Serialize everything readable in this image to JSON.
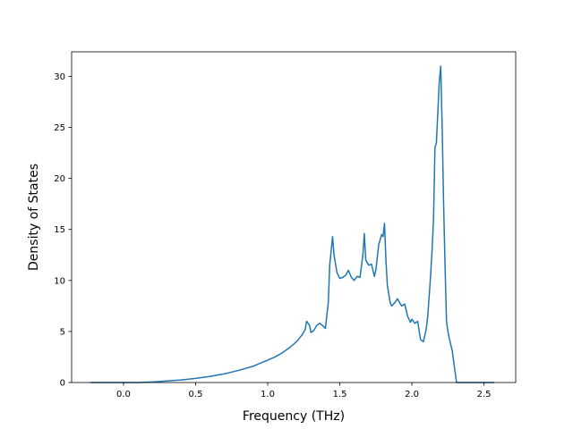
{
  "chart_data": {
    "type": "line",
    "title": "",
    "xlabel": "Frequency (THz)",
    "ylabel": "Density of States",
    "xlim": [
      -0.36,
      2.72
    ],
    "ylim": [
      0,
      32.4
    ],
    "grid": false,
    "legend": "none",
    "xticks": [
      0.0,
      0.5,
      1.0,
      1.5,
      2.0,
      2.5
    ],
    "xtick_labels": [
      "0.0",
      "0.5",
      "1.0",
      "1.5",
      "2.0",
      "2.5"
    ],
    "yticks": [
      0,
      5,
      10,
      15,
      20,
      25,
      30
    ],
    "ytick_labels": [
      "0",
      "5",
      "10",
      "15",
      "20",
      "25",
      "30"
    ],
    "series": [
      {
        "color": "#1f77b4",
        "x": [
          -0.23,
          -0.1,
          0.0,
          0.1,
          0.2,
          0.3,
          0.4,
          0.5,
          0.6,
          0.7,
          0.8,
          0.9,
          1.0,
          1.05,
          1.1,
          1.15,
          1.2,
          1.24,
          1.26,
          1.27,
          1.29,
          1.3,
          1.32,
          1.34,
          1.36,
          1.38,
          1.4,
          1.42,
          1.43,
          1.45,
          1.46,
          1.48,
          1.5,
          1.52,
          1.54,
          1.56,
          1.58,
          1.6,
          1.62,
          1.64,
          1.66,
          1.67,
          1.68,
          1.7,
          1.72,
          1.74,
          1.75,
          1.77,
          1.79,
          1.8,
          1.81,
          1.82,
          1.83,
          1.85,
          1.86,
          1.88,
          1.9,
          1.92,
          1.93,
          1.95,
          1.97,
          1.98,
          1.99,
          2.0,
          2.02,
          2.04,
          2.06,
          2.08,
          2.1,
          2.11,
          2.13,
          2.14,
          2.15,
          2.16,
          2.17,
          2.18,
          2.19,
          2.2,
          2.21,
          2.22,
          2.23,
          2.24,
          2.25,
          2.26,
          2.28,
          2.3,
          2.31,
          2.32,
          2.33,
          2.34,
          2.36,
          2.45,
          2.57
        ],
        "y": [
          0.0,
          0.0,
          0.0,
          0.0,
          0.05,
          0.15,
          0.25,
          0.4,
          0.6,
          0.85,
          1.2,
          1.6,
          2.2,
          2.5,
          2.9,
          3.4,
          4.0,
          4.7,
          5.2,
          6.0,
          5.6,
          4.9,
          5.1,
          5.6,
          5.8,
          5.6,
          5.3,
          7.8,
          11.5,
          14.3,
          12.5,
          10.8,
          10.2,
          10.3,
          10.5,
          11.0,
          10.3,
          10.0,
          10.4,
          10.3,
          12.5,
          14.6,
          12.0,
          11.5,
          11.6,
          10.4,
          11.0,
          13.5,
          14.5,
          14.3,
          15.6,
          12.0,
          9.5,
          7.8,
          7.5,
          7.8,
          8.2,
          7.7,
          7.5,
          7.7,
          6.5,
          6.2,
          5.9,
          6.2,
          5.8,
          6.0,
          4.2,
          4.0,
          5.3,
          6.5,
          10.5,
          13.0,
          16.0,
          23.0,
          23.5,
          26.5,
          29.5,
          31.0,
          25.0,
          17.5,
          11.5,
          6.0,
          5.0,
          4.3,
          3.1,
          1.0,
          0.0,
          0.0,
          0.0,
          0.0,
          0.0,
          0.0,
          0.0
        ]
      }
    ]
  }
}
